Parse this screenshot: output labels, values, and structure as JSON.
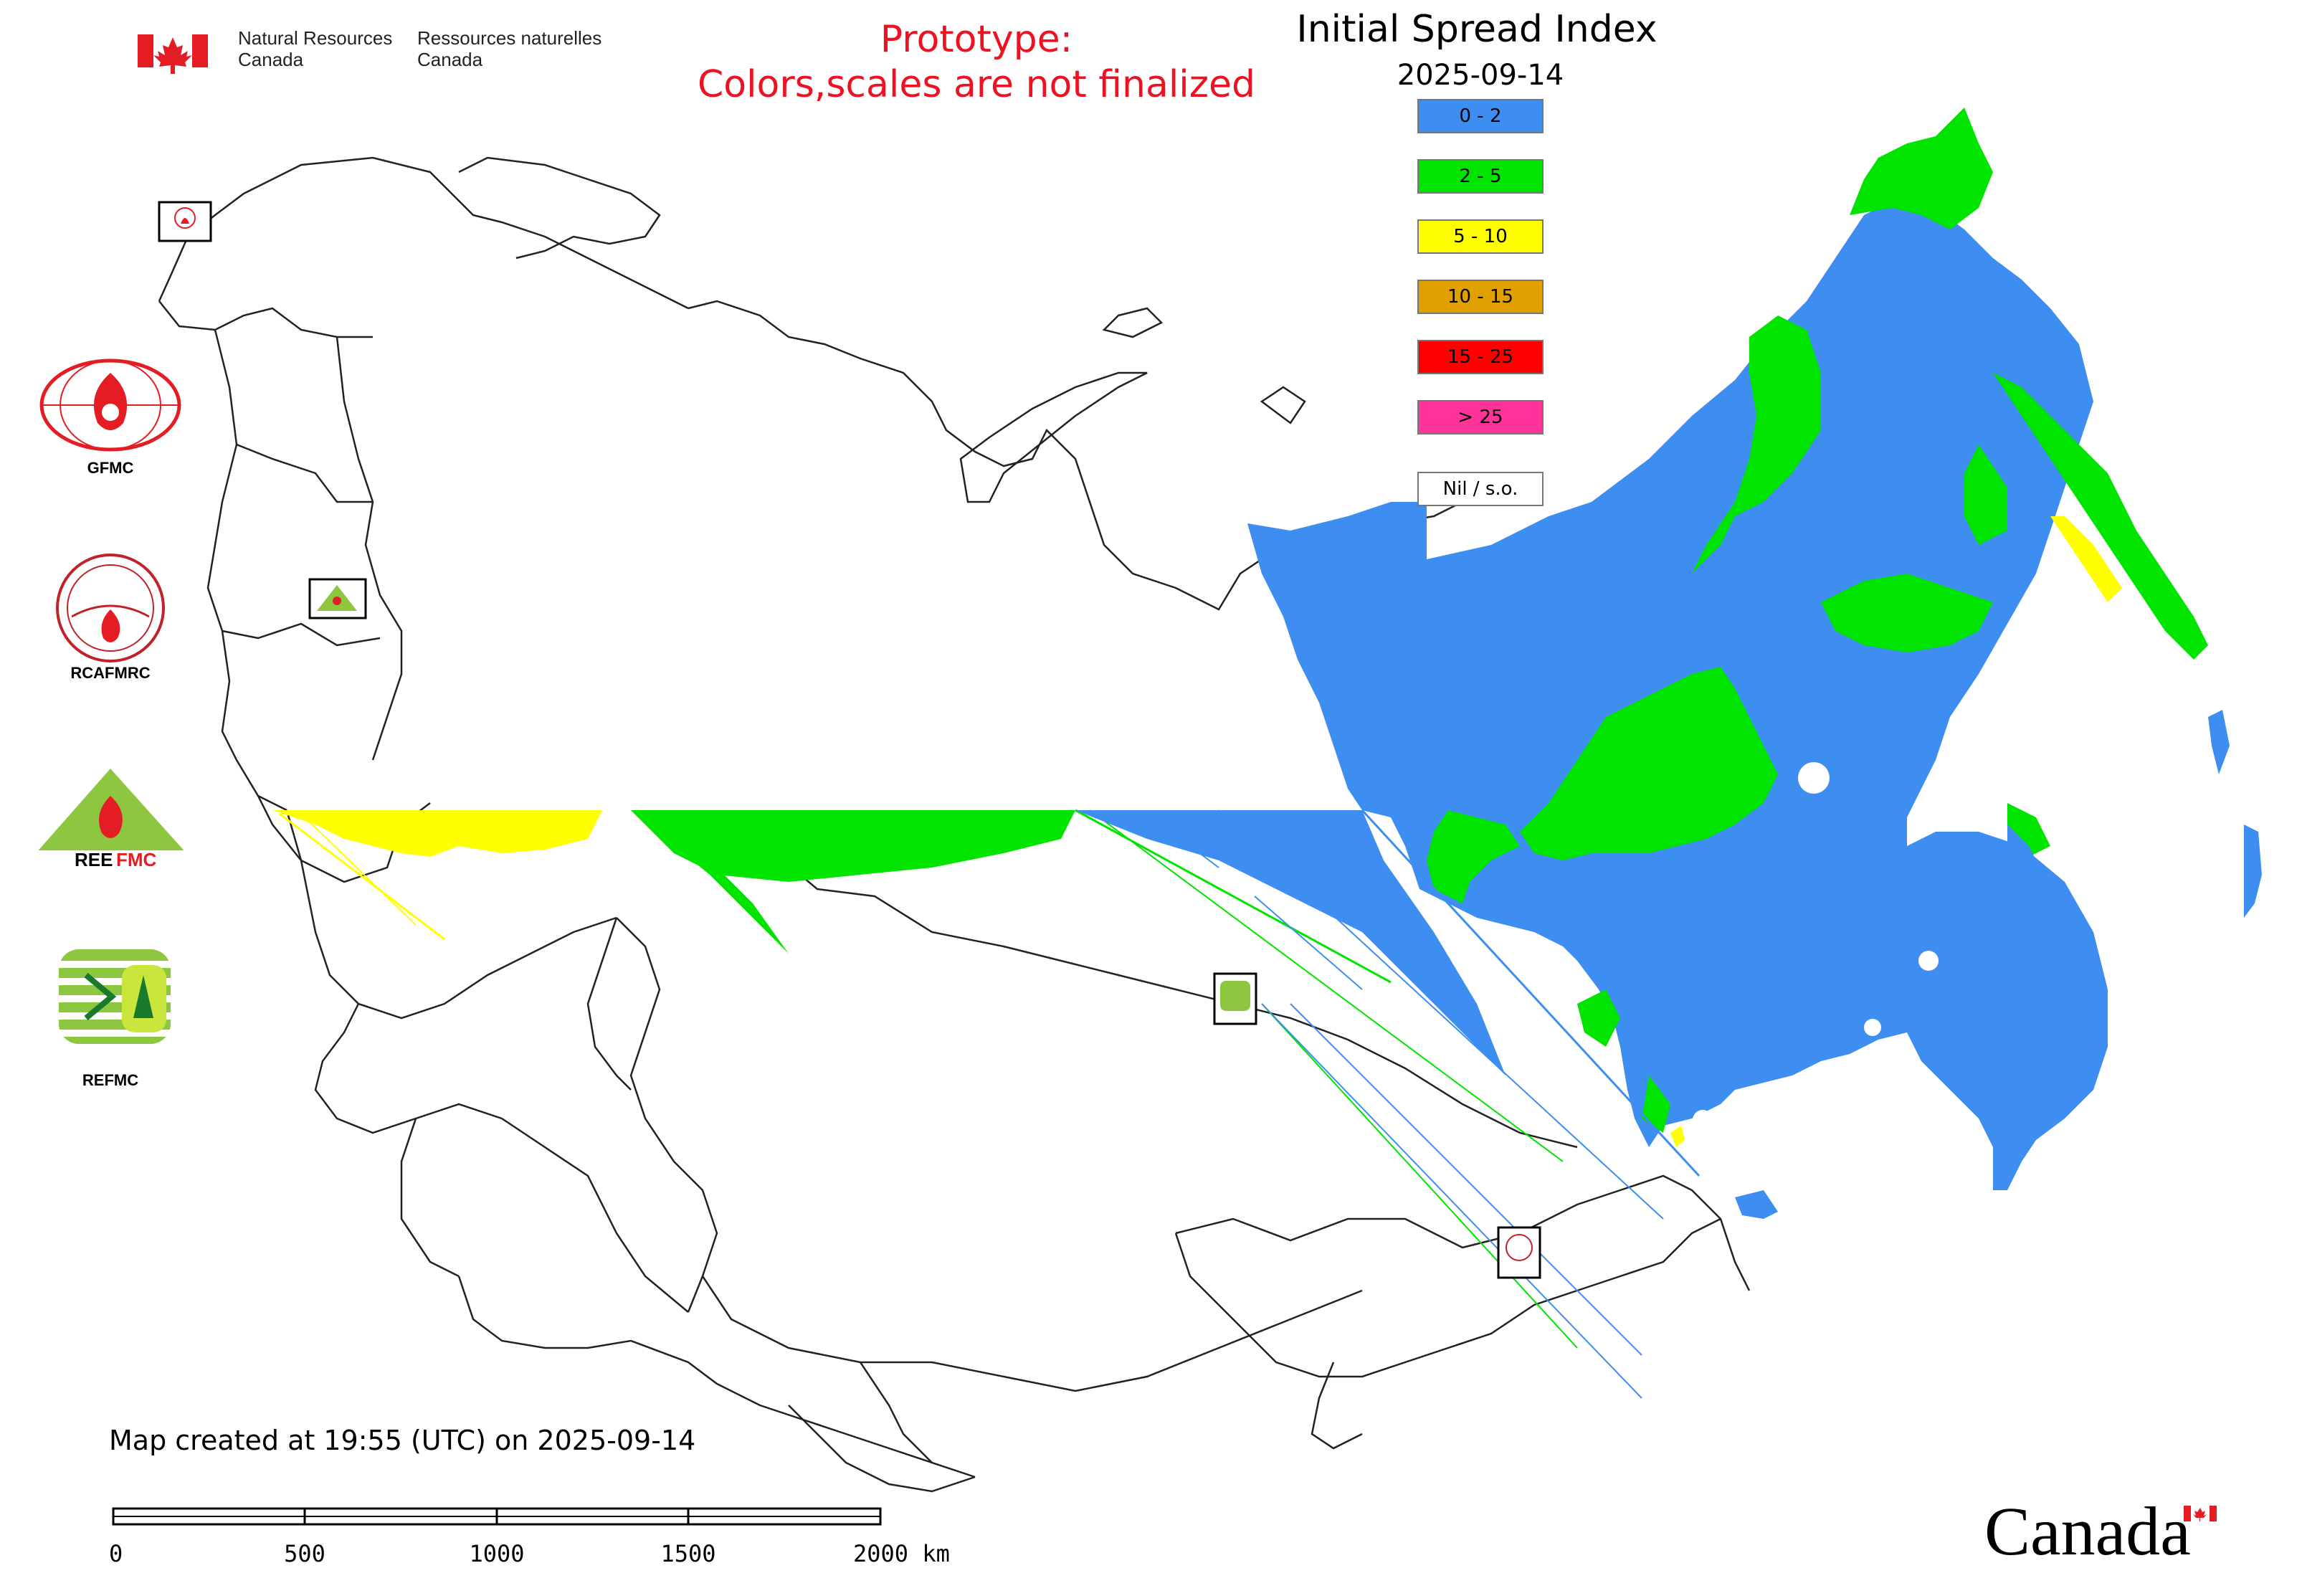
{
  "header": {
    "nrcan_en_line1": "Natural Resources",
    "nrcan_en_line2": "Canada",
    "nrcan_fr_line1": "Ressources naturelles",
    "nrcan_fr_line2": "Canada",
    "prototype_line1": "Prototype:",
    "prototype_line2": "Colors,scales are not finalized",
    "map_title": "Initial Spread Index",
    "map_date": "2025-09-14"
  },
  "legend": {
    "items": [
      {
        "label": "0 - 2",
        "color": "#3d8ef0"
      },
      {
        "label": "2 - 5",
        "color": "#00e400"
      },
      {
        "label": "5 - 10",
        "color": "#ffff00"
      },
      {
        "label": "10 - 15",
        "color": "#e0a000"
      },
      {
        "label": "15 - 25",
        "color": "#ff0000"
      },
      {
        "label": "> 25",
        "color": "#ff3399"
      },
      {
        "label": "Nil / s.o.",
        "color": "#ffffff"
      }
    ]
  },
  "logos": {
    "gfmc": "GFMC",
    "rcafmrc": "RCAFMRC",
    "reefmc": "REEFMC",
    "refmc": "REFMC"
  },
  "footer": {
    "created_text": "Map created at 19:55 (UTC) on 2025-09-14",
    "scale_ticks": [
      "0",
      "500",
      "1000",
      "1500",
      "2000 km"
    ],
    "canada_wordmark": "Canada"
  },
  "colors": {
    "prototype_red": "#ee1122",
    "flag_red": "#e31d23",
    "low_blue": "#3d8ef0",
    "mid_green": "#00e400",
    "yellow": "#ffff00"
  }
}
